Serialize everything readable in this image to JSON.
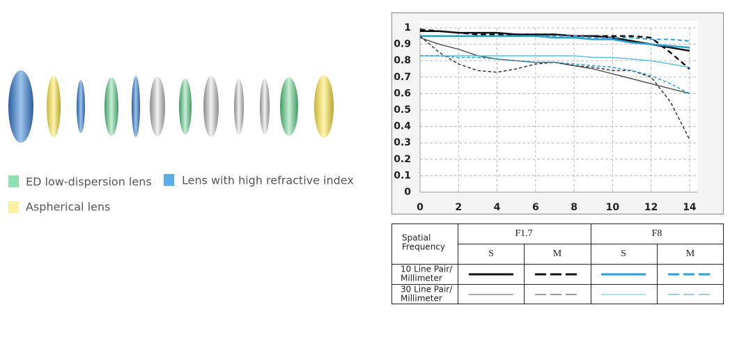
{
  "lens_legend": [
    "ED low-dispersion lens",
    "Lens with high refractive index",
    "Aspherical lens"
  ],
  "chart_data": {
    "type": "line",
    "x": [
      0,
      1,
      2,
      3,
      4,
      5,
      6,
      7,
      8,
      9,
      10,
      11,
      12,
      13,
      14
    ],
    "xlim": [
      0,
      14.4
    ],
    "xticks": [
      0,
      2,
      4,
      6,
      8,
      10,
      12,
      14
    ],
    "ylim": [
      0,
      1
    ],
    "yticks": [
      0,
      0.1,
      0.2,
      0.3,
      0.4,
      0.5,
      0.6,
      0.7,
      0.8,
      0.9,
      1
    ],
    "grid": true,
    "series": [
      {
        "color": "#111111",
        "dashed": false,
        "width": 2.5,
        "values": [
          0.98,
          0.98,
          0.97,
          0.97,
          0.97,
          0.96,
          0.96,
          0.96,
          0.95,
          0.95,
          0.94,
          0.92,
          0.9,
          0.88,
          0.86
        ]
      },
      {
        "color": "#111111",
        "dashed": true,
        "width": 2.5,
        "values": [
          0.99,
          0.98,
          0.97,
          0.96,
          0.96,
          0.96,
          0.96,
          0.96,
          0.95,
          0.95,
          0.95,
          0.95,
          0.94,
          0.85,
          0.75
        ]
      },
      {
        "color": "#2a9fd6",
        "dashed": false,
        "width": 2.5,
        "values": [
          0.95,
          0.95,
          0.95,
          0.95,
          0.95,
          0.95,
          0.95,
          0.94,
          0.94,
          0.93,
          0.93,
          0.91,
          0.9,
          0.89,
          0.88
        ]
      },
      {
        "color": "#2a9fd6",
        "dashed": true,
        "width": 2,
        "values": [
          0.95,
          0.95,
          0.95,
          0.95,
          0.95,
          0.95,
          0.95,
          0.95,
          0.95,
          0.94,
          0.94,
          0.94,
          0.93,
          0.93,
          0.92
        ]
      },
      {
        "color": "#555555",
        "dashed": false,
        "width": 1.5,
        "values": [
          0.94,
          0.9,
          0.87,
          0.83,
          0.81,
          0.8,
          0.79,
          0.79,
          0.77,
          0.75,
          0.72,
          0.69,
          0.66,
          0.63,
          0.6
        ]
      },
      {
        "color": "#333333",
        "dashed": true,
        "width": 1.5,
        "values": [
          0.95,
          0.85,
          0.78,
          0.74,
          0.73,
          0.75,
          0.78,
          0.79,
          0.77,
          0.76,
          0.74,
          0.74,
          0.7,
          0.55,
          0.32
        ]
      },
      {
        "color": "#5bc0e6",
        "dashed": false,
        "width": 1.5,
        "values": [
          0.83,
          0.83,
          0.83,
          0.83,
          0.83,
          0.83,
          0.83,
          0.83,
          0.83,
          0.82,
          0.82,
          0.81,
          0.8,
          0.78,
          0.76
        ]
      },
      {
        "color": "#2a9fd6",
        "dashed": true,
        "width": 1.5,
        "values": [
          0.83,
          0.83,
          0.82,
          0.82,
          0.81,
          0.8,
          0.79,
          0.79,
          0.78,
          0.77,
          0.76,
          0.74,
          0.71,
          0.66,
          0.6
        ]
      }
    ]
  },
  "table": {
    "corner": [
      "Spatial",
      "Frequency"
    ],
    "apertures": [
      "F1.7",
      "F8"
    ],
    "subheads": [
      "S",
      "M",
      "S",
      "M"
    ],
    "rows": [
      [
        "10 Line Pair/",
        "Millimeter"
      ],
      [
        "30 Line Pair/",
        "Millimeter"
      ]
    ]
  }
}
